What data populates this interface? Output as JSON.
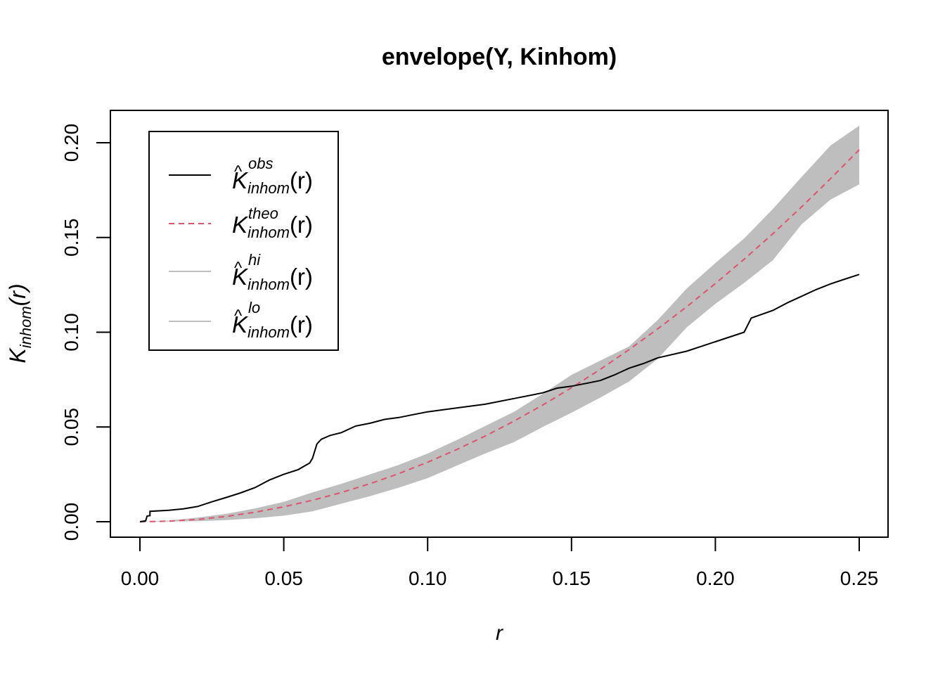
{
  "chart_data": {
    "type": "line",
    "title": "envelope(Y, Kinhom)",
    "xlabel": "r",
    "ylabel": {
      "base": "K",
      "sub": "inhom",
      "arg": "(r)"
    },
    "xlim": [
      0.0,
      0.25
    ],
    "ylim": [
      0.0,
      0.2
    ],
    "x_ticks": [
      "0.00",
      "0.05",
      "0.10",
      "0.15",
      "0.20",
      "0.25"
    ],
    "y_ticks": [
      "0.00",
      "0.05",
      "0.10",
      "0.15",
      "0.20"
    ],
    "x_tick_values": [
      0.0,
      0.05,
      0.1,
      0.15,
      0.2,
      0.25
    ],
    "y_tick_values": [
      0.0,
      0.05,
      0.1,
      0.15,
      0.2
    ],
    "grid": false,
    "legend_position": "top-left",
    "colors": {
      "obs": "#000000",
      "theo": "#DF536B",
      "envelope": "#BEBEBE"
    },
    "series": [
      {
        "name": "obs",
        "legend": {
          "base": "K",
          "hat": true,
          "sup": "obs",
          "sub": "inhom",
          "arg": "(r)"
        },
        "style": "solid",
        "points": [
          [
            0.0,
            0.0
          ],
          [
            0.002,
            0.0005
          ],
          [
            0.0025,
            0.003
          ],
          [
            0.0035,
            0.0032
          ],
          [
            0.0035,
            0.0055
          ],
          [
            0.01,
            0.006
          ],
          [
            0.015,
            0.0068
          ],
          [
            0.02,
            0.008
          ],
          [
            0.025,
            0.0105
          ],
          [
            0.03,
            0.0128
          ],
          [
            0.035,
            0.0152
          ],
          [
            0.04,
            0.018
          ],
          [
            0.045,
            0.022
          ],
          [
            0.05,
            0.025
          ],
          [
            0.055,
            0.0275
          ],
          [
            0.059,
            0.031
          ],
          [
            0.06,
            0.0335
          ],
          [
            0.0615,
            0.041
          ],
          [
            0.063,
            0.0435
          ],
          [
            0.066,
            0.0455
          ],
          [
            0.07,
            0.047
          ],
          [
            0.075,
            0.0505
          ],
          [
            0.08,
            0.052
          ],
          [
            0.085,
            0.054
          ],
          [
            0.09,
            0.055
          ],
          [
            0.095,
            0.0565
          ],
          [
            0.1,
            0.058
          ],
          [
            0.11,
            0.06
          ],
          [
            0.12,
            0.062
          ],
          [
            0.13,
            0.065
          ],
          [
            0.14,
            0.068
          ],
          [
            0.145,
            0.0705
          ],
          [
            0.15,
            0.0715
          ],
          [
            0.155,
            0.073
          ],
          [
            0.16,
            0.0745
          ],
          [
            0.165,
            0.0775
          ],
          [
            0.17,
            0.081
          ],
          [
            0.175,
            0.0835
          ],
          [
            0.18,
            0.0865
          ],
          [
            0.19,
            0.09
          ],
          [
            0.2,
            0.095
          ],
          [
            0.21,
            0.1
          ],
          [
            0.2125,
            0.1075
          ],
          [
            0.22,
            0.1115
          ],
          [
            0.225,
            0.1155
          ],
          [
            0.23,
            0.119
          ],
          [
            0.235,
            0.1225
          ],
          [
            0.24,
            0.1255
          ],
          [
            0.245,
            0.128
          ],
          [
            0.25,
            0.1305
          ]
        ]
      },
      {
        "name": "theo",
        "legend": {
          "base": "K",
          "hat": false,
          "sup": "theo",
          "sub": "inhom",
          "arg": "(r)"
        },
        "style": "dashed",
        "points": [
          [
            0.0,
            0.0
          ],
          [
            0.01,
            0.0003
          ],
          [
            0.02,
            0.0012
          ],
          [
            0.03,
            0.0028
          ],
          [
            0.04,
            0.005
          ],
          [
            0.05,
            0.0079
          ],
          [
            0.06,
            0.0113
          ],
          [
            0.07,
            0.0154
          ],
          [
            0.08,
            0.0201
          ],
          [
            0.09,
            0.0254
          ],
          [
            0.1,
            0.0314
          ],
          [
            0.11,
            0.038
          ],
          [
            0.12,
            0.0452
          ],
          [
            0.13,
            0.0531
          ],
          [
            0.14,
            0.0616
          ],
          [
            0.15,
            0.0707
          ],
          [
            0.16,
            0.0804
          ],
          [
            0.17,
            0.0908
          ],
          [
            0.18,
            0.1018
          ],
          [
            0.19,
            0.1134
          ],
          [
            0.2,
            0.1257
          ],
          [
            0.21,
            0.1385
          ],
          [
            0.22,
            0.152
          ],
          [
            0.23,
            0.1662
          ],
          [
            0.24,
            0.181
          ],
          [
            0.25,
            0.1963
          ]
        ]
      }
    ],
    "envelope": {
      "legend_hi": {
        "base": "K",
        "hat": true,
        "sup": "hi",
        "sub": "inhom",
        "arg": "(r)"
      },
      "legend_lo": {
        "base": "K",
        "hat": true,
        "sup": "lo",
        "sub": "inhom",
        "arg": "(r)"
      },
      "hi": [
        [
          0.0,
          0.0
        ],
        [
          0.01,
          0.0006
        ],
        [
          0.02,
          0.0022
        ],
        [
          0.03,
          0.0042
        ],
        [
          0.04,
          0.007
        ],
        [
          0.05,
          0.0105
        ],
        [
          0.06,
          0.0155
        ],
        [
          0.07,
          0.02
        ],
        [
          0.08,
          0.025
        ],
        [
          0.09,
          0.03
        ],
        [
          0.1,
          0.036
        ],
        [
          0.11,
          0.043
        ],
        [
          0.12,
          0.0505
        ],
        [
          0.13,
          0.058
        ],
        [
          0.14,
          0.0675
        ],
        [
          0.15,
          0.0775
        ],
        [
          0.16,
          0.085
        ],
        [
          0.17,
          0.0925
        ],
        [
          0.18,
          0.1065
        ],
        [
          0.19,
          0.123
        ],
        [
          0.2,
          0.1365
        ],
        [
          0.21,
          0.1495
        ],
        [
          0.22,
          0.165
        ],
        [
          0.23,
          0.182
        ],
        [
          0.24,
          0.1985
        ],
        [
          0.25,
          0.209
        ]
      ],
      "lo": [
        [
          0.0,
          0.0
        ],
        [
          0.01,
          0.0001
        ],
        [
          0.02,
          0.0003
        ],
        [
          0.03,
          0.0008
        ],
        [
          0.04,
          0.0018
        ],
        [
          0.05,
          0.0032
        ],
        [
          0.06,
          0.0055
        ],
        [
          0.07,
          0.0095
        ],
        [
          0.08,
          0.0135
        ],
        [
          0.09,
          0.018
        ],
        [
          0.1,
          0.023
        ],
        [
          0.11,
          0.0295
        ],
        [
          0.12,
          0.036
        ],
        [
          0.13,
          0.042
        ],
        [
          0.14,
          0.05
        ],
        [
          0.15,
          0.0575
        ],
        [
          0.16,
          0.0655
        ],
        [
          0.17,
          0.074
        ],
        [
          0.18,
          0.086
        ],
        [
          0.19,
          0.1025
        ],
        [
          0.2,
          0.115
        ],
        [
          0.21,
          0.126
        ],
        [
          0.22,
          0.138
        ],
        [
          0.23,
          0.157
        ],
        [
          0.24,
          0.17
        ],
        [
          0.25,
          0.178
        ]
      ]
    }
  }
}
